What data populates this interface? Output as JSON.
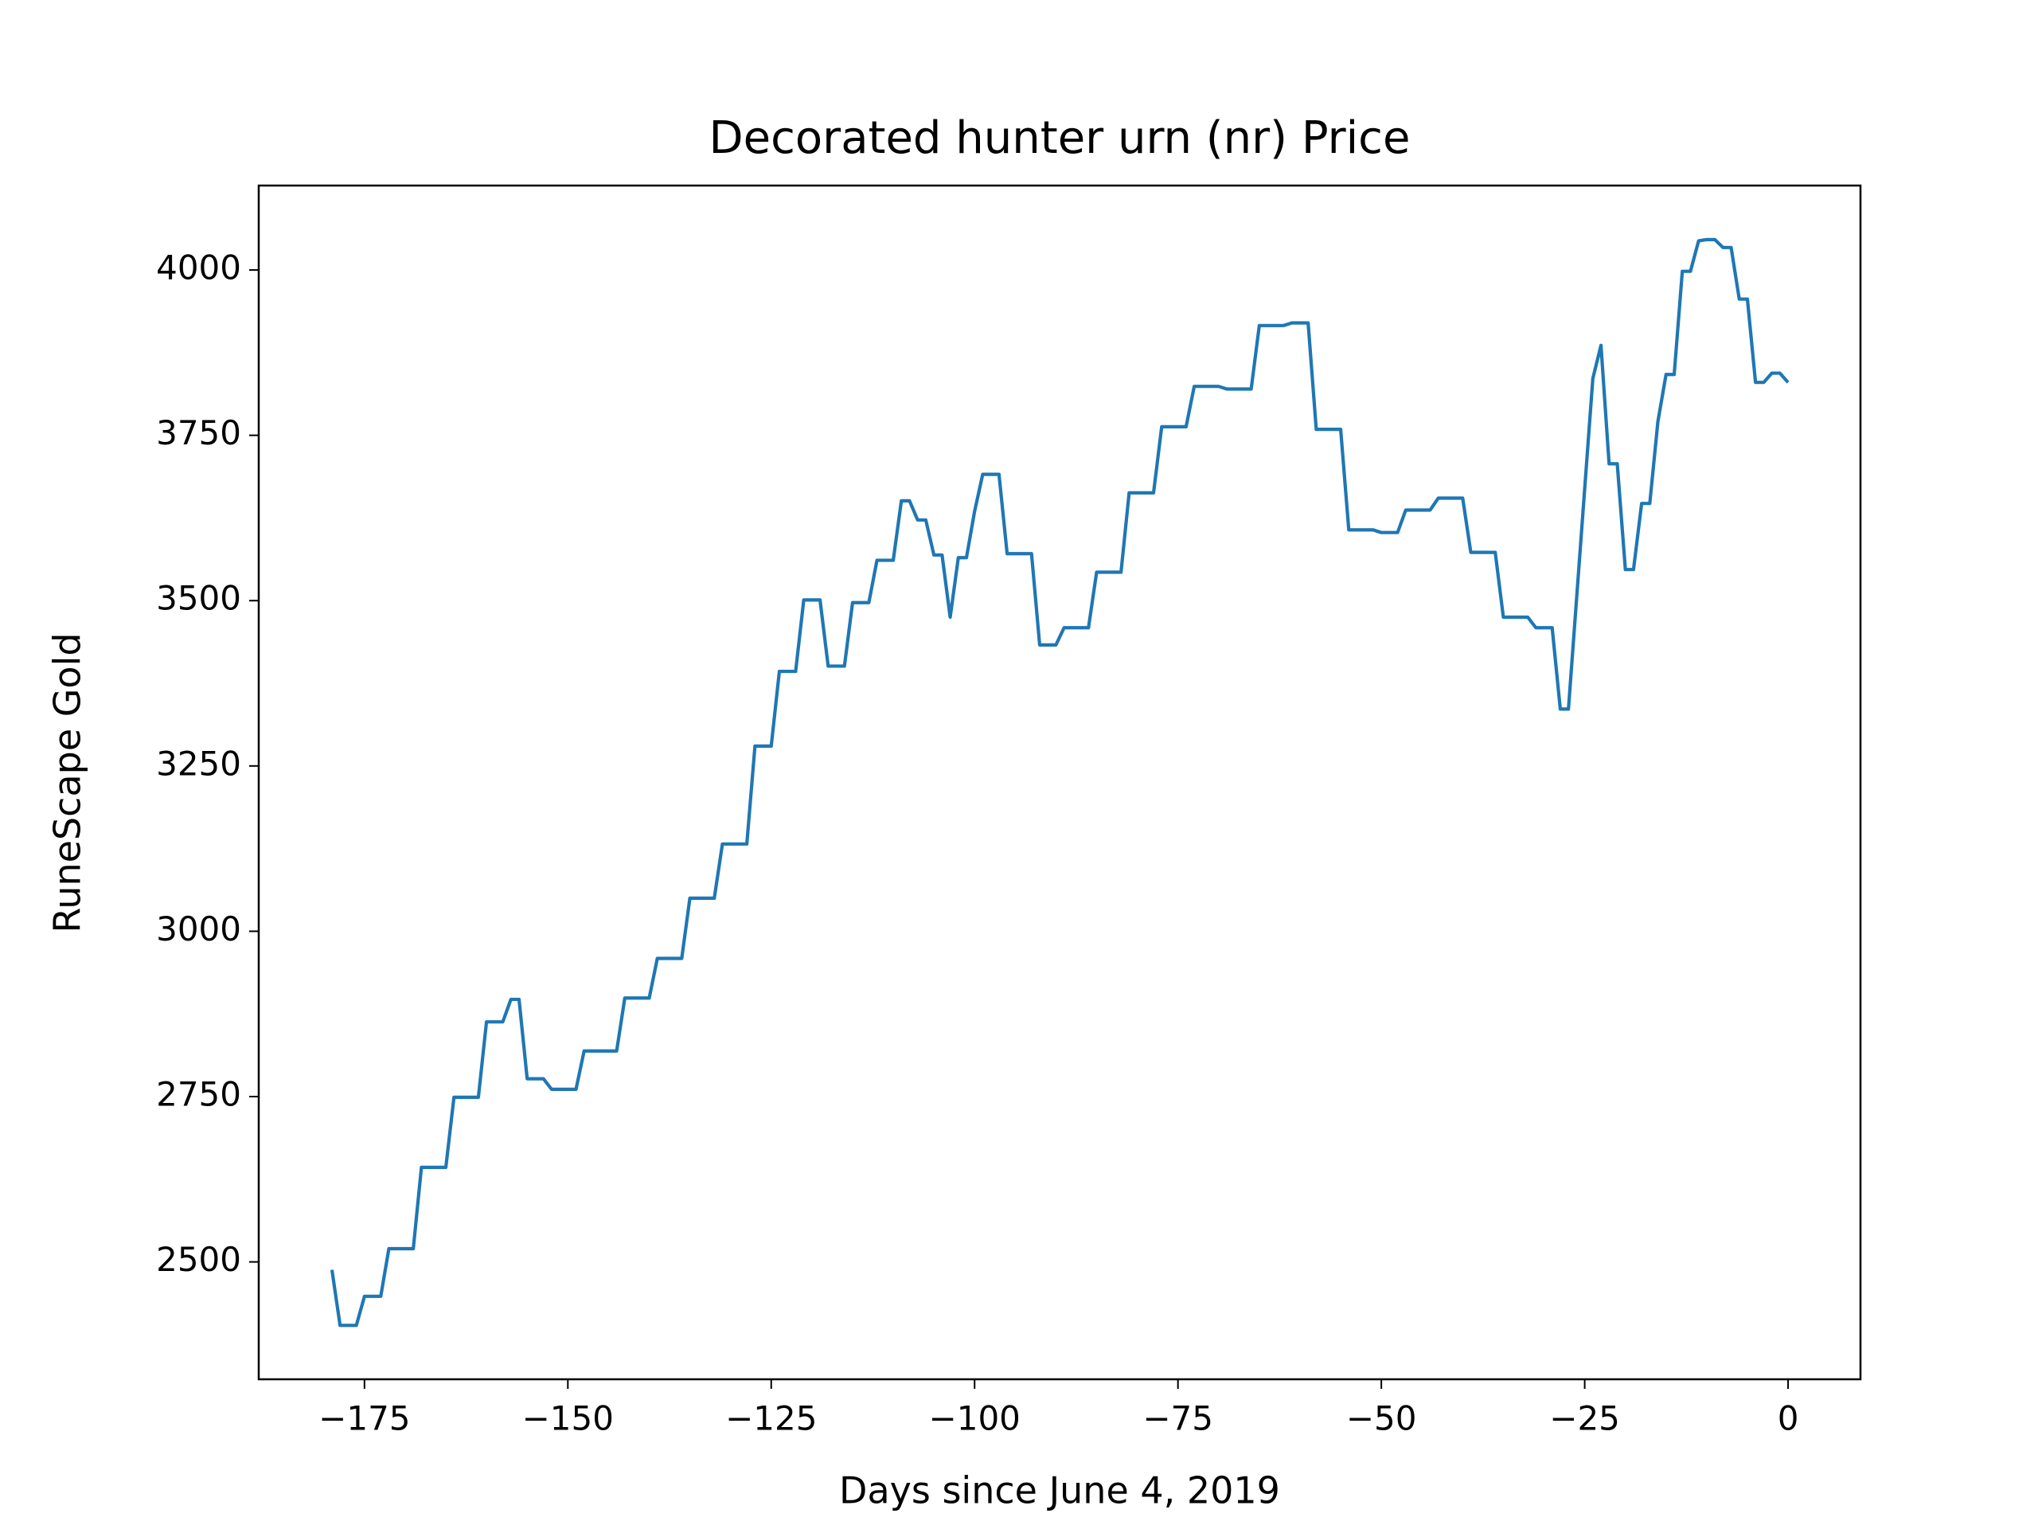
{
  "chart_data": {
    "type": "line",
    "title": "Decorated hunter urn (nr) Price",
    "x_label": "Days since June 4, 2019",
    "y_label": "RuneScape Gold",
    "x": [
      -179,
      -178,
      -176,
      -175,
      -173,
      -172,
      -169,
      -168,
      -165,
      -164,
      -161,
      -160,
      -158,
      -157,
      -156,
      -155,
      -153,
      -152,
      -149,
      -148,
      -144,
      -143,
      -140,
      -139,
      -136,
      -135,
      -132,
      -131,
      -128,
      -127,
      -125,
      -124,
      -122,
      -121,
      -119,
      -118,
      -116,
      -115,
      -113,
      -112,
      -110,
      -109,
      -108,
      -107,
      -106,
      -105,
      -104,
      -103,
      -102,
      -101,
      -100,
      -99,
      -97,
      -96,
      -93,
      -92,
      -90,
      -89,
      -86,
      -85,
      -82,
      -81,
      -78,
      -77,
      -74,
      -73,
      -70,
      -69,
      -66,
      -65,
      -62,
      -61,
      -59,
      -58,
      -55,
      -54,
      -51,
      -50,
      -48,
      -47,
      -44,
      -43,
      -40,
      -39,
      -36,
      -35,
      -32,
      -31,
      -29,
      -28,
      -27,
      -24,
      -23,
      -22,
      -21,
      -20,
      -19,
      -18,
      -17,
      -16,
      -15,
      -14,
      -13,
      -12,
      -11,
      -10,
      -9,
      -8,
      -7,
      -6,
      -5,
      -4,
      -3,
      -2,
      -1,
      0
    ],
    "series": [
      {
        "name": "Price",
        "color": "#1f77b4",
        "values": [
          2488,
          2404,
          2404,
          2448,
          2448,
          2520,
          2520,
          2643,
          2643,
          2749,
          2749,
          2863,
          2863,
          2897,
          2897,
          2777,
          2777,
          2761,
          2761,
          2819,
          2819,
          2899,
          2899,
          2959,
          2959,
          3050,
          3050,
          3132,
          3132,
          3280,
          3280,
          3393,
          3393,
          3501,
          3501,
          3401,
          3401,
          3497,
          3497,
          3561,
          3561,
          3651,
          3651,
          3622,
          3622,
          3569,
          3569,
          3475,
          3565,
          3565,
          3635,
          3691,
          3691,
          3571,
          3571,
          3433,
          3433,
          3459,
          3459,
          3543,
          3543,
          3663,
          3663,
          3763,
          3763,
          3824,
          3824,
          3820,
          3820,
          3916,
          3916,
          3920,
          3920,
          3759,
          3759,
          3607,
          3607,
          3603,
          3603,
          3637,
          3637,
          3655,
          3655,
          3573,
          3573,
          3475,
          3475,
          3459,
          3459,
          3336,
          3336,
          3836,
          3886,
          3707,
          3707,
          3547,
          3547,
          3647,
          3647,
          3771,
          3842,
          3842,
          3998,
          3998,
          4044,
          4046,
          4046,
          4034,
          4034,
          3956,
          3956,
          3830,
          3830,
          3844,
          3844,
          3830
        ]
      }
    ],
    "xlim": [
      -188,
      8.9
    ],
    "ylim": [
      2322.5,
      4127.7
    ],
    "xticks": [
      {
        "value": -175,
        "label": "−175"
      },
      {
        "value": -150,
        "label": "−150"
      },
      {
        "value": -125,
        "label": "−125"
      },
      {
        "value": -100,
        "label": "−100"
      },
      {
        "value": -75,
        "label": "−75"
      },
      {
        "value": -50,
        "label": "−50"
      },
      {
        "value": -25,
        "label": "−25"
      },
      0
    ],
    "yticks": [
      2500,
      2750,
      3000,
      3250,
      3500,
      3750,
      4000
    ]
  }
}
